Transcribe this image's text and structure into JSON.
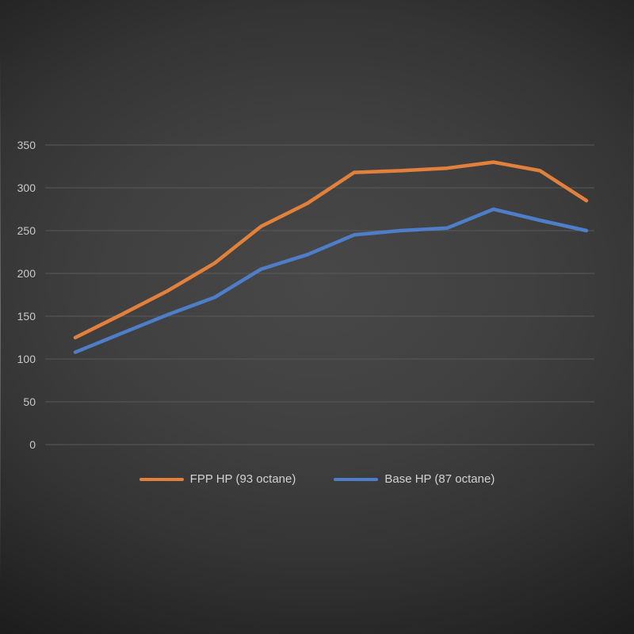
{
  "chart_data": {
    "type": "line",
    "title": "",
    "xlabel": "",
    "ylabel": "",
    "ylim": [
      0,
      350
    ],
    "yticks": [
      0,
      50,
      100,
      150,
      200,
      250,
      300,
      350
    ],
    "grid": true,
    "legend_position": "bottom",
    "series": [
      {
        "name": "FPP HP (93 octane)",
        "color": "#E2813C",
        "values": [
          125,
          152,
          180,
          212,
          255,
          282,
          318,
          320,
          323,
          330,
          320,
          285
        ]
      },
      {
        "name": "Base HP (87 octane)",
        "color": "#4E7EC8",
        "values": [
          108,
          130,
          152,
          172,
          205,
          222,
          245,
          250,
          253,
          275,
          262,
          250
        ]
      }
    ]
  },
  "legend": {
    "fpp_label": "FPP HP (93 octane)",
    "base_label": "Base HP (87 octane)"
  }
}
